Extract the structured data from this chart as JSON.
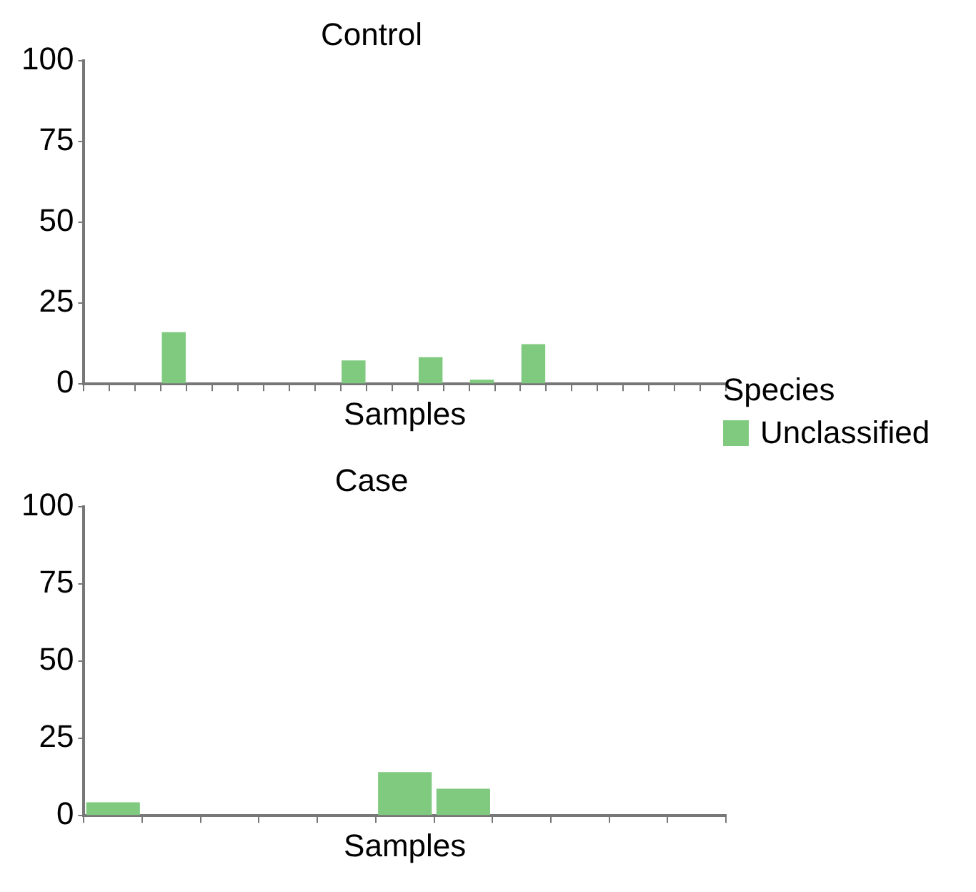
{
  "chart_data": [
    {
      "type": "bar",
      "title": "Control",
      "xlabel": "Samples",
      "legend_title": "Species",
      "legend": "right",
      "tick_labels": "y",
      "grid": false,
      "ylim": [
        0,
        100
      ],
      "yticks": [
        0,
        25,
        50,
        75,
        100
      ],
      "categories": [
        null,
        null,
        null,
        null,
        null,
        null,
        null,
        null,
        null,
        null,
        null,
        null,
        null,
        null,
        null,
        null,
        null,
        null,
        null,
        null,
        null,
        null,
        null,
        null,
        null
      ],
      "series": [
        {
          "name": "Unclassified",
          "color": "#7fca7f",
          "values": [
            0,
            0,
            0,
            16,
            0,
            0,
            0,
            0,
            0,
            0,
            7.3,
            0,
            0,
            8.3,
            0,
            1.3,
            0,
            12.3,
            0,
            0,
            0,
            0,
            0,
            0,
            0
          ]
        }
      ]
    },
    {
      "type": "bar",
      "title": "Case",
      "xlabel": "Samples",
      "legend": false,
      "tick_labels": "y",
      "grid": false,
      "ylim": [
        0,
        100
      ],
      "yticks": [
        0,
        25,
        50,
        75,
        100
      ],
      "categories": [
        null,
        null,
        null,
        null,
        null,
        null,
        null,
        null,
        null,
        null,
        null
      ],
      "series": [
        {
          "color": "#7fca7f",
          "values": [
            4.3,
            0,
            0,
            0,
            0,
            14.1,
            8.7,
            0,
            0,
            0,
            0
          ]
        }
      ]
    }
  ]
}
